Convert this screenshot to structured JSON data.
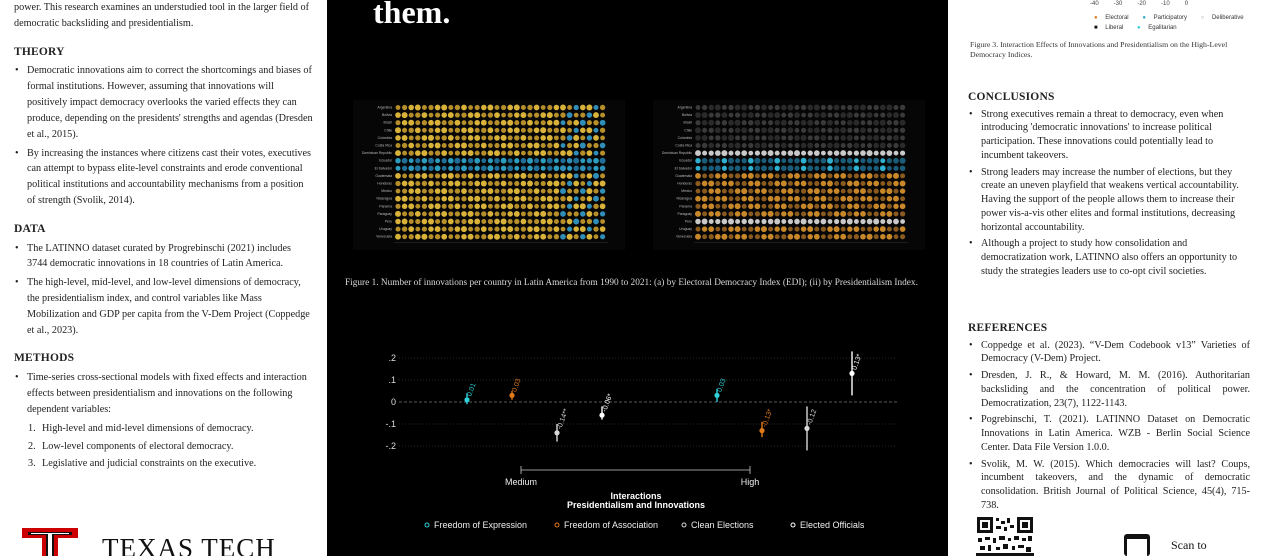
{
  "left": {
    "intro": "power. This research examines an understudied tool in the larger field of democratic backsliding and presidentialism.",
    "theory": {
      "heading": "THEORY",
      "bullets": [
        "Democratic innovations aim to correct the shortcomings and biases of formal institutions. However, assuming that innovations will positively impact democracy overlooks the varied effects they can produce, depending on the presidents' strengths and agendas (Dresden et al., 2015).",
        "By increasing the instances where citizens cast their votes, executives can attempt to bypass elite-level constraints and erode conventional political institutions and accountability mechanisms from a position of strength (Svolik, 2014)."
      ]
    },
    "data": {
      "heading": "DATA",
      "bullets": [
        "The LATINNO dataset curated by Progrebinschi (2021) includes 3744 democratic innovations in 18 countries of Latin America.",
        "The high-level, mid-level, and low-level dimensions of democracy, the presidentialism index, and control variables like Mass Mobilization and GDP per capita from the V-Dem Project (Coppedge et al., 2023)."
      ]
    },
    "methods": {
      "heading": "METHODS",
      "bullet": "Time-series cross-sectional models with fixed effects and interaction effects between presidentialism and innovations on the following dependent variables:",
      "items": [
        {
          "n": "1.",
          "text": "High-level and mid-level dimensions of democracy."
        },
        {
          "n": "2.",
          "text": "Low-level components of electoral democracy."
        },
        {
          "n": "3.",
          "text": "Legislative and judicial constraints on the executive."
        }
      ]
    },
    "logo_text": "TEXAS TECH"
  },
  "middle": {
    "headline": "them.",
    "fig1_caption": "Figure 1. Number of innovations per country in Latin America from 1990 to 2021: (a) by Electoral Democracy Index (EDI); (ii) by Presidentialism Index.",
    "countries": [
      "Argentina",
      "Bolivia",
      "Brazil",
      "Chile",
      "Colombia",
      "Costa Rica",
      "Dominican Republic",
      "Ecuador",
      "El Salvador",
      "Guatemala",
      "Honduras",
      "Mexico",
      "Nicaragua",
      "Panama",
      "Paraguay",
      "Peru",
      "Uruguay",
      "Venezuela"
    ]
  },
  "chart_data": {
    "type": "scatter",
    "title": "",
    "xlabel": "Interactions Presidentialism and Innovations",
    "ylabel": "",
    "categories": [
      "Medium",
      "High"
    ],
    "ylim": [
      -0.22,
      0.22
    ],
    "yticks": [
      0.2,
      0.1,
      0,
      -0.1,
      -0.2
    ],
    "ytick_labels": [
      ".2",
      ".1",
      "0",
      "-.1",
      "-.2"
    ],
    "series": [
      {
        "name": "Freedom of Expression",
        "color": "#2fd0d8",
        "points": [
          {
            "group": "Medium",
            "value": 0.01,
            "ci": [
              -0.01,
              0.04
            ],
            "label": "0.01"
          },
          {
            "group": "High",
            "value": 0.03,
            "ci": [
              0.0,
              0.06
            ],
            "label": "0.03"
          }
        ]
      },
      {
        "name": "Freedom of Association",
        "color": "#e07a1a",
        "points": [
          {
            "group": "Medium",
            "value": 0.03,
            "ci": [
              0.01,
              0.05
            ],
            "label": "0.03"
          },
          {
            "group": "High",
            "value": -0.13,
            "ci": [
              -0.16,
              -0.09
            ],
            "label": "-0.13*"
          }
        ]
      },
      {
        "name": "Clean Elections",
        "color": "#d8d8d8",
        "points": [
          {
            "group": "Medium",
            "value": -0.14,
            "ci": [
              -0.18,
              -0.1
            ],
            "label": "-0.14**"
          },
          {
            "group": "High",
            "value": -0.12,
            "ci": [
              -0.22,
              -0.02
            ],
            "label": "-0.12"
          }
        ]
      },
      {
        "name": "Elected Officials",
        "color": "#ffffff",
        "points": [
          {
            "group": "Medium",
            "value": -0.06,
            "ci": [
              -0.08,
              -0.02
            ],
            "label": "-0.06*"
          },
          {
            "group": "High",
            "value": 0.13,
            "ci": [
              0.03,
              0.23
            ],
            "label": "0.13*"
          }
        ]
      }
    ]
  },
  "right": {
    "axis_ticks": [
      "-40",
      "-30",
      "-20",
      "-10",
      "0"
    ],
    "legend_items": [
      "Electoral",
      "Participatory",
      "Deliberative",
      "Liberal",
      "Egalitarian"
    ],
    "fig3_caption": "Figure 3. Interaction Effects of Innovations and Presidentialism on the High-Level Democracy Indices.",
    "conclusions": {
      "heading": "CONCLUSIONS",
      "bullets": [
        "Strong executives remain a threat to democracy, even when introducing 'democratic innovations' to increase political participation. These innovations could potentially lead to incumbent takeovers.",
        "Strong leaders may increase the number of elections, but they create an uneven playfield that weakens vertical accountability. Having the support of the people allows them to increase their power vis-a-vis other elites and formal institutions, decreasing horizontal accountability.",
        "Although a project to study how consolidation and democratization work, LATINNO also offers an opportunity to study the strategies leaders use to co-opt civil societies."
      ]
    },
    "references": {
      "heading": "REFERENCES",
      "items": [
        "Coppedge et al. (2023). “V-Dem Codebook v13” Varieties of Democracy (V-Dem) Project.",
        "Dresden, J. R., & Howard, M. M. (2016). Authoritarian backsliding and the concentration of political power. Democratization, 23(7), 1122-1143.",
        "Pogrebinschi, T. (2021). LATINNO Dataset on Democratic Innovations in Latin America. WZB - Berlin Social Science Center. Data File Version 1.0.0.",
        "Svolik, M. W. (2015). Which democracies will last? Coups, incumbent takeovers, and the dynamic of democratic consolidation. British Journal of Political Science, 45(4), 715-738."
      ]
    },
    "scan_text": "Scan to"
  }
}
